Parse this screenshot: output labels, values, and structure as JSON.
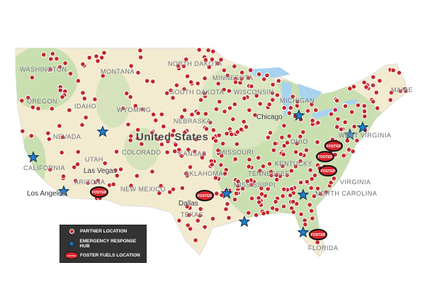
{
  "map": {
    "country_label": "United States",
    "state_labels": [
      "WASHINGTON",
      "MONTANA",
      "NORTH DAKOTA",
      "MINNESOTA",
      "OREGON",
      "IDAHO",
      "SOUTH DAKOTA",
      "WISCONSIN",
      "MICHIGAN",
      "WYOMING",
      "NEBRASKA",
      "NEVADA",
      "UTAH",
      "COLORADO",
      "KANSAS",
      "MISSOURI",
      "CALIFORNIA",
      "OKLAHOMA",
      "TENNESSEE",
      "KENTUCKY",
      "ARIZONA",
      "NEW MEXICO",
      "TEXAS",
      "MISSISSIPPI",
      "NORTH CAROLINA",
      "FLORIDA",
      "MAINE",
      "OHIO",
      "WEST VIRGINIA",
      "VIRGINIA"
    ],
    "city_labels": [
      "Las Vegas",
      "Los Angeles",
      "Chicago",
      "Dallas"
    ],
    "foster_marker_text": "FOSTER",
    "colors": {
      "land": "#f2ebd0",
      "green": "#c9dfb0",
      "water": "#a8d3ef",
      "partner": "#c1272d",
      "hub": "#1f7fd0",
      "foster": "#d9252b"
    }
  },
  "legend": {
    "items": [
      {
        "label": "PARTNER LOCATION",
        "icon": "partner-dot-icon"
      },
      {
        "label": "EMERGENCY RESPONSE HUB",
        "icon": "star-icon"
      },
      {
        "label": "FOSTER FUELS LOCATION",
        "icon": "foster-badge-icon"
      }
    ]
  }
}
